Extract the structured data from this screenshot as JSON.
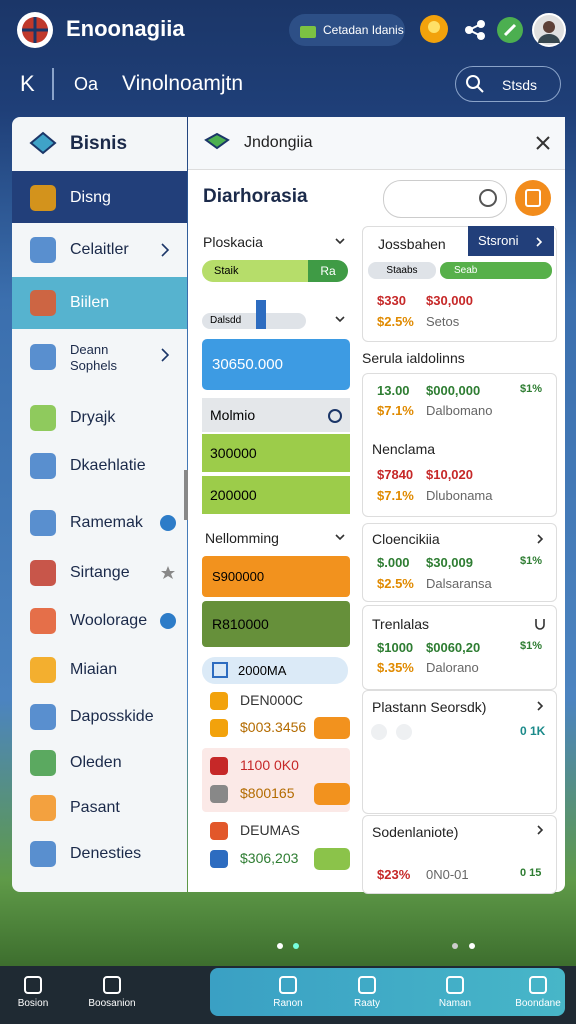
{
  "header": {
    "app_name": "Enoonagiia",
    "pill": "Cetadan Idanis"
  },
  "toolbar": {
    "back": "K",
    "label": "Oa",
    "title": "Vinolnoamjtn",
    "search": "Stsds"
  },
  "sidebar": {
    "title": "Bisnis",
    "items": [
      "Disng",
      "Celaitler",
      "Biilen",
      "Deann Sophels",
      "Dryajk",
      "Dkaehlatie",
      "Ramemak",
      "Sirtange",
      "Woolorage",
      "Miaian",
      "Daposskide",
      "Oleden",
      "Pasant",
      "Denesties"
    ]
  },
  "panel": {
    "header": "Jndongiia",
    "title": "Diarhorasia",
    "left": {
      "dropdown1": "Ploskacia",
      "bar_label": "Staik",
      "bar_button": "Ra",
      "slider_label": "Dalsdd",
      "blue_card": "30650.000",
      "group_title": "Molmio",
      "green_cards": [
        "300000",
        "200000"
      ],
      "dropdown2": "Nellomming",
      "orange_card": "S900000",
      "olive_card": "R810000",
      "pill": "2000MA",
      "rows": [
        "DEN000C",
        "$003.3456",
        "1100 0K0",
        "$800165",
        "DEUMAS",
        "$306,203"
      ]
    },
    "right": {
      "card1": {
        "title": "Jossbahen",
        "tab": "Stsroni",
        "pill1": "Staabs",
        "pill2": "Seab",
        "row1": [
          "$330",
          "$30,000"
        ],
        "row2": [
          "$2.5%",
          "Setos"
        ]
      },
      "section": "Serula ialdolinns",
      "card2": {
        "row1": [
          "13.00",
          "$000,000",
          "$1%"
        ],
        "row2": [
          "$7.1%",
          "Dalbomano"
        ],
        "subtitle": "Nenclama",
        "row3": [
          "$7840",
          "$10,020"
        ],
        "row4": [
          "$7.1%",
          "Dlubonama"
        ]
      },
      "card3": {
        "title": "Cloencikiia",
        "row1": [
          "$.000",
          "$30,009",
          "$1%"
        ],
        "row2": [
          "$2.5%",
          "Dalsaransa"
        ]
      },
      "card4": {
        "title": "Trenlalas",
        "row1": [
          "$1000",
          "$0060,20",
          "$1%"
        ],
        "row2": [
          "$.35%",
          "Dalorano"
        ]
      },
      "card5": {
        "title": "Plastann Seorsdk)",
        "badge": "0 1K"
      },
      "card6": {
        "title": "Sodenlaniote)",
        "row1": [
          "$23%",
          "0N0-01",
          "0 15"
        ]
      }
    }
  },
  "bottom_nav": {
    "left": [
      "Bosion",
      "Boosanion"
    ],
    "right": [
      "Ranon",
      "Raaty",
      "Naman",
      "Boondane"
    ]
  }
}
